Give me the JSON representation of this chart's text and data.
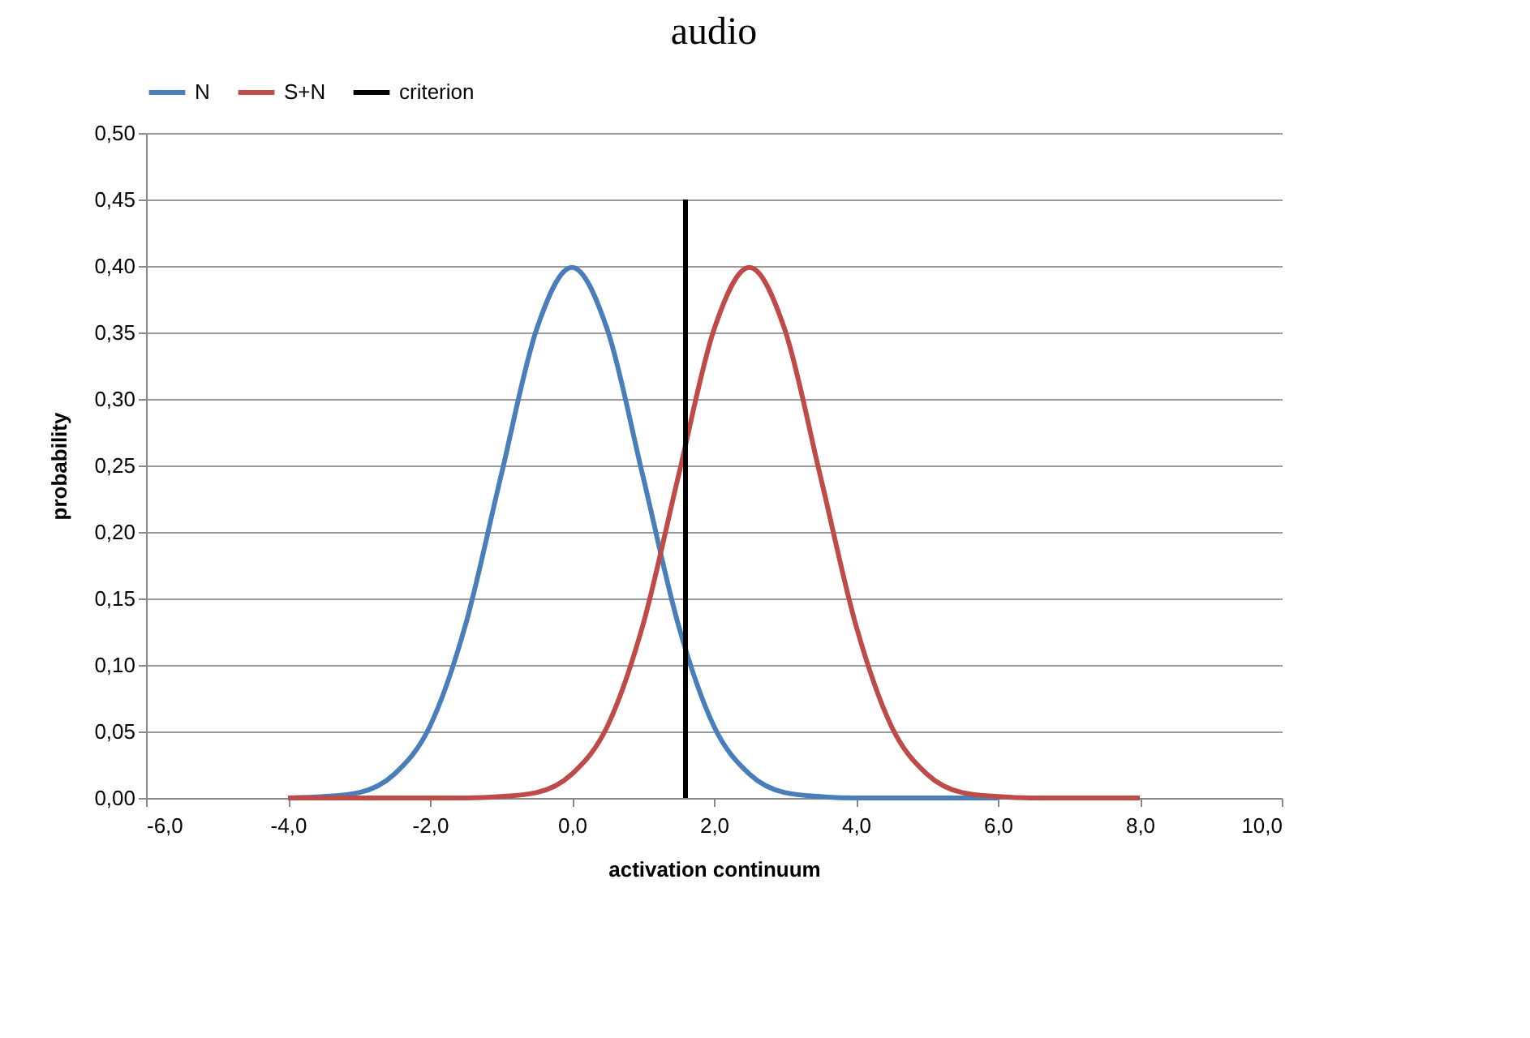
{
  "chart_data": {
    "type": "line",
    "title": "audio",
    "xlabel": "activation continuum",
    "ylabel": "probability",
    "x": [
      -4,
      -3.5,
      -3,
      -2.5,
      -2,
      -1.5,
      -1,
      -0.5,
      0,
      0.5,
      1,
      1.5,
      2,
      2.5,
      3,
      3.5,
      4,
      4.5,
      5,
      5.5,
      6,
      6.5,
      7,
      7.5,
      8
    ],
    "series": [
      {
        "name": "N",
        "color": "#4a7ebb",
        "values": [
          0,
          0.001,
          0.004,
          0.018,
          0.054,
          0.13,
          0.242,
          0.352,
          0.399,
          0.352,
          0.242,
          0.13,
          0.054,
          0.018,
          0.004,
          0.001,
          0,
          0,
          0,
          0,
          0,
          null,
          null,
          null,
          null
        ]
      },
      {
        "name": "S+N",
        "color": "#be4b48",
        "values": [
          0,
          0,
          0,
          0,
          0,
          0,
          0.001,
          0.004,
          0.018,
          0.054,
          0.13,
          0.242,
          0.352,
          0.399,
          0.352,
          0.242,
          0.13,
          0.054,
          0.018,
          0.004,
          0.001,
          0,
          0,
          0,
          0
        ]
      },
      {
        "name": "criterion",
        "color": "#000000",
        "x": [
          1.6,
          1.6
        ],
        "values": [
          0,
          0.45
        ]
      }
    ],
    "xlim": [
      -6,
      10
    ],
    "xticks": [
      {
        "value": -6,
        "label": "-6,0"
      },
      {
        "value": -4,
        "label": "-4,0"
      },
      {
        "value": -2,
        "label": "-2,0"
      },
      {
        "value": 0,
        "label": "0,0"
      },
      {
        "value": 2,
        "label": "2,0"
      },
      {
        "value": 4,
        "label": "4,0"
      },
      {
        "value": 6,
        "label": "6,0"
      },
      {
        "value": 8,
        "label": "8,0"
      },
      {
        "value": 10,
        "label": "10,0"
      }
    ],
    "ylim": [
      0,
      0.5
    ],
    "yticks": [
      {
        "value": 0,
        "label": "0,00"
      },
      {
        "value": 0.05,
        "label": "0,05"
      },
      {
        "value": 0.1,
        "label": "0,10"
      },
      {
        "value": 0.15,
        "label": "0,15"
      },
      {
        "value": 0.2,
        "label": "0,20"
      },
      {
        "value": 0.25,
        "label": "0,25"
      },
      {
        "value": 0.3,
        "label": "0,30"
      },
      {
        "value": 0.35,
        "label": "0,35"
      },
      {
        "value": 0.4,
        "label": "0,40"
      },
      {
        "value": 0.45,
        "label": "0,45"
      },
      {
        "value": 0.5,
        "label": "0,50"
      }
    ],
    "grid": "y",
    "legend": "top",
    "marker": "none",
    "line_style": "solid"
  }
}
